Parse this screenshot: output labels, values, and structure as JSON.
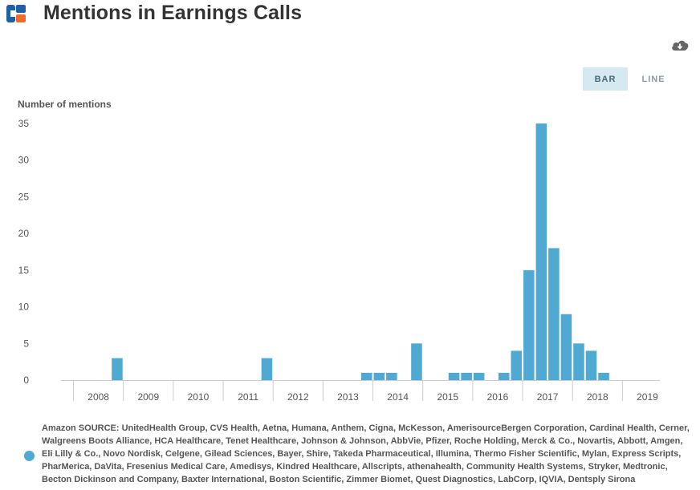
{
  "header": {
    "title": "Mentions in Earnings Calls",
    "logo_icon": "brand-logo-icon",
    "download_icon": "cloud-download-icon"
  },
  "toggle": {
    "bar_label": "BAR",
    "line_label": "LINE",
    "selected": "BAR"
  },
  "colors": {
    "bar": "#4fa9d2",
    "axis": "#cccccc",
    "logo_blue": "#1f5fa8",
    "logo_orange": "#f26a2a"
  },
  "chart_data": {
    "type": "bar",
    "title": "Mentions in Earnings Calls",
    "ylabel": "Number of mentions",
    "xlabel": "",
    "ylim": [
      0,
      35
    ],
    "yticks": [
      0,
      5,
      10,
      15,
      20,
      25,
      30,
      35
    ],
    "grid": false,
    "x_year_labels": [
      "2008",
      "2009",
      "2010",
      "2011",
      "2012",
      "2013",
      "2014",
      "2015",
      "2016",
      "2017",
      "2018",
      "2019"
    ],
    "x_start": "2007-10",
    "x_end": "2019-10",
    "interval": "quarter",
    "series": [
      {
        "name": "Amazon",
        "values": [
          {
            "quarter": "2008-Q4",
            "value": 3
          },
          {
            "quarter": "2011-Q4",
            "value": 3
          },
          {
            "quarter": "2013-Q4",
            "value": 1
          },
          {
            "quarter": "2014-Q1",
            "value": 1
          },
          {
            "quarter": "2014-Q2",
            "value": 1
          },
          {
            "quarter": "2014-Q4",
            "value": 5
          },
          {
            "quarter": "2015-Q3",
            "value": 1
          },
          {
            "quarter": "2015-Q4",
            "value": 1
          },
          {
            "quarter": "2016-Q1",
            "value": 1
          },
          {
            "quarter": "2016-Q3",
            "value": 1
          },
          {
            "quarter": "2016-Q4",
            "value": 4
          },
          {
            "quarter": "2017-Q1",
            "value": 15
          },
          {
            "quarter": "2017-Q2",
            "value": 35
          },
          {
            "quarter": "2017-Q3",
            "value": 18
          },
          {
            "quarter": "2017-Q4",
            "value": 9
          },
          {
            "quarter": "2018-Q1",
            "value": 5
          },
          {
            "quarter": "2018-Q2",
            "value": 4
          },
          {
            "quarter": "2018-Q3",
            "value": 1
          }
        ]
      }
    ],
    "legend": {
      "position": "bottom",
      "text": "Amazon SOURCE: UnitedHealth Group, CVS Health, Aetna, Humana, Anthem, Cigna, McKesson, AmerisourceBergen Corporation, Cardinal Health, Cerner, Walgreens Boots Alliance, HCA Healthcare, Tenet Healthcare, Johnson & Johnson, AbbVie, Pfizer, Roche Holding, Merck & Co., Novartis, Abbott, Amgen, Eli Lilly & Co., Novo Nordisk, Celgene, Gilead Sciences, Bayer, Shire, Takeda Pharmaceutical, Illumina, Thermo Fisher Scientific, Mylan, Express Scripts, PharMerica, DaVita, Fresenius Medical Care, Amedisys, Kindred Healthcare, Allscripts, athenahealth, Community Health Systems, Stryker, Medtronic, Becton Dickinson and Company, Baxter International, Boston Scientific, Zimmer Biomet, Quest Diagnostics, LabCorp, IQVIA, Dentsply Sirona"
    }
  }
}
